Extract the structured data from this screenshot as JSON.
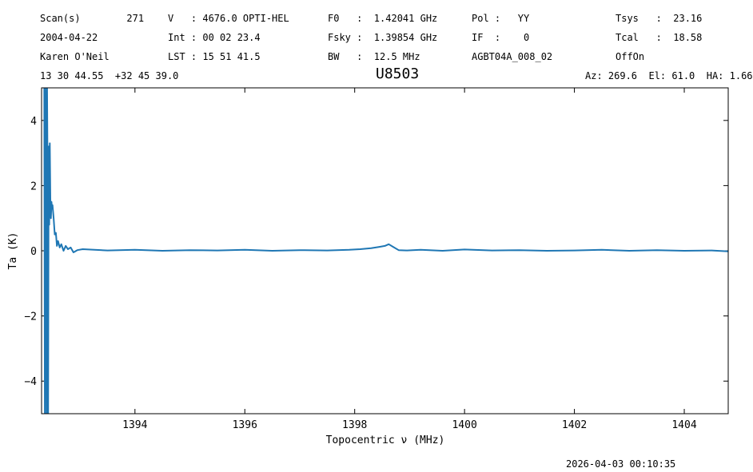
{
  "header": {
    "col1": [
      "Scan(s)        271",
      "2004-04-22",
      "Karen O'Neil",
      "13 30 44.55  +32 45 39.0"
    ],
    "col2": [
      "V   : 4676.0 OPTI-HEL",
      "Int : 00 02 23.4",
      "LST : 15 51 41.5"
    ],
    "col3": [
      "F0   :  1.42041 GHz",
      "Fsky :  1.39854 GHz",
      "BW   :  12.5 MHz"
    ],
    "col4": [
      "Pol :   YY",
      "IF  :    0",
      "AGBT04A_008_02"
    ],
    "col5": [
      "Tsys   :  23.16",
      "Tcal   :  18.58",
      "OffOn"
    ],
    "azel": "Az: 269.6  El: 61.0  HA: 1.66"
  },
  "timestamp": "2026-04-03 00:10:35",
  "chart_data": {
    "type": "line",
    "title": "U8503",
    "xlabel": "Topocentric ν (MHz)",
    "ylabel": "Ta (K)",
    "xlim": [
      1392.3,
      1404.8
    ],
    "ylim": [
      -5,
      5
    ],
    "xticks": [
      1394,
      1396,
      1398,
      1400,
      1402,
      1404
    ],
    "yticks": [
      -4,
      -2,
      0,
      2,
      4
    ],
    "ytick_labels": [
      "−4",
      "−2",
      "0",
      "2",
      "4"
    ],
    "color": "#1f77b4",
    "series": [
      {
        "x": [
          1392.35,
          1392.36,
          1392.37,
          1392.38,
          1392.39,
          1392.4,
          1392.41,
          1392.42,
          1392.43,
          1392.44,
          1392.45,
          1392.46,
          1392.47,
          1392.48,
          1392.49,
          1392.5,
          1392.52,
          1392.54,
          1392.56,
          1392.58,
          1392.6,
          1392.63,
          1392.66,
          1392.7,
          1392.74,
          1392.78,
          1392.83,
          1392.88,
          1392.95,
          1393.05,
          1393.5,
          1394.0,
          1394.5,
          1395.0,
          1395.5,
          1396.0,
          1396.5,
          1397.0,
          1397.5,
          1397.9,
          1398.1,
          1398.3,
          1398.45,
          1398.55,
          1398.62,
          1398.7,
          1398.8,
          1398.95,
          1399.2,
          1399.6,
          1400.0,
          1400.5,
          1401.0,
          1401.5,
          1402.0,
          1402.5,
          1403.0,
          1403.5,
          1404.0,
          1404.5,
          1404.8
        ],
        "y": [
          5.0,
          -5.0,
          5.0,
          4.2,
          -5.0,
          5.0,
          2.0,
          -5.0,
          3.2,
          0.8,
          3.3,
          1.6,
          1.0,
          1.5,
          1.3,
          1.4,
          1.0,
          0.5,
          0.55,
          0.15,
          0.3,
          0.1,
          0.2,
          0.0,
          0.15,
          0.05,
          0.1,
          -0.05,
          0.02,
          0.05,
          0.01,
          0.03,
          0.0,
          0.02,
          0.01,
          0.03,
          0.0,
          0.02,
          0.01,
          0.03,
          0.05,
          0.08,
          0.12,
          0.15,
          0.2,
          0.12,
          0.02,
          0.01,
          0.03,
          0.0,
          0.04,
          0.01,
          0.02,
          0.0,
          0.01,
          0.03,
          0.0,
          0.02,
          0.0,
          0.01,
          -0.02
        ]
      }
    ]
  }
}
